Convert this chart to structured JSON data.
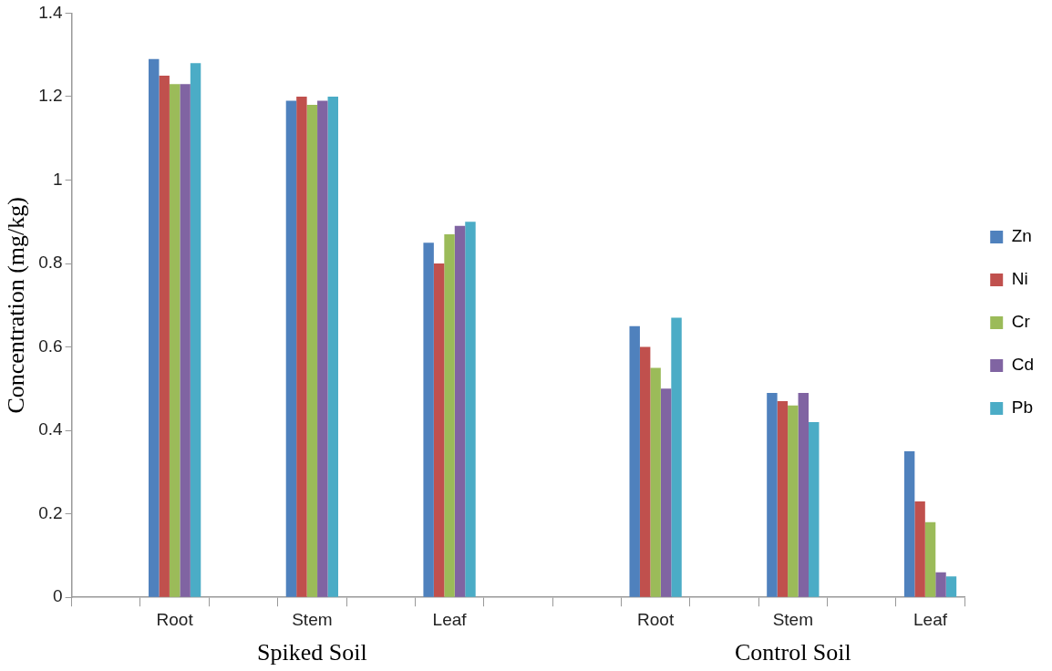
{
  "chart_data": {
    "type": "bar",
    "ylabel": "Concentration (mg/kg)",
    "categories": [
      null,
      "Root",
      null,
      "Stem",
      null,
      "Leaf",
      null,
      null,
      "Root",
      null,
      "Stem",
      null,
      "Leaf"
    ],
    "series": [
      {
        "name": "Zn",
        "color": "#4f81bd",
        "values": [
          null,
          1.29,
          null,
          1.19,
          null,
          0.85,
          null,
          null,
          0.65,
          null,
          0.49,
          null,
          0.35
        ]
      },
      {
        "name": "Ni",
        "color": "#c0504d",
        "values": [
          null,
          1.25,
          null,
          1.2,
          null,
          0.8,
          null,
          null,
          0.6,
          null,
          0.47,
          null,
          0.23
        ]
      },
      {
        "name": "Cr",
        "color": "#9bbb59",
        "values": [
          null,
          1.23,
          null,
          1.18,
          null,
          0.87,
          null,
          null,
          0.55,
          null,
          0.46,
          null,
          0.18
        ]
      },
      {
        "name": "Cd",
        "color": "#8064a2",
        "values": [
          null,
          1.23,
          null,
          1.19,
          null,
          0.89,
          null,
          null,
          0.5,
          null,
          0.49,
          null,
          0.06
        ]
      },
      {
        "name": "Pb",
        "color": "#4bacc6",
        "values": [
          null,
          1.28,
          null,
          1.2,
          null,
          0.9,
          null,
          null,
          0.67,
          null,
          0.42,
          null,
          0.05
        ]
      }
    ],
    "ylim": [
      0,
      1.4
    ],
    "yticks": [
      0,
      0.2,
      0.4,
      0.6,
      0.8,
      1,
      1.2,
      1.4
    ],
    "grid": false,
    "legend": "right",
    "annotations": [
      "Spiked Soil",
      "Control Soil"
    ]
  }
}
